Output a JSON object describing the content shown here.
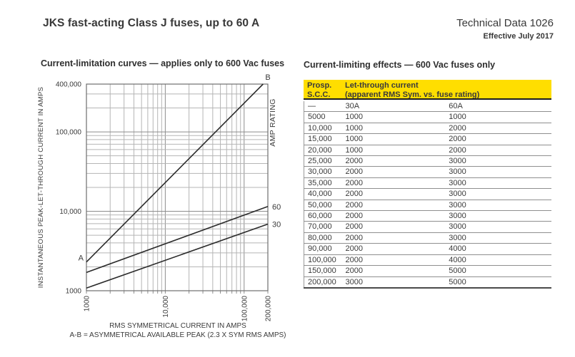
{
  "page": {
    "title": "JKS fast-acting Class J fuses, up to 60 A",
    "doc_ref": "Technical Data 1026",
    "effective": "Effective July 2017"
  },
  "chart_data": {
    "type": "line",
    "title": "Current-limitation curves — applies only to 600 Vac fuses",
    "xlabel": "RMS SYMMETRICAL CURRENT IN AMPS",
    "ylabel": "INSTANTANEOUS PEAK-LET-THROUGH CURRENT IN AMPS",
    "right_label": "AMP RATING",
    "footnote": "A-B = ASYMMETRICAL AVAILABLE PEAK (2.3 X SYM RMS AMPS)",
    "x_scale": "log",
    "y_scale": "log",
    "xlim": [
      1000,
      200000
    ],
    "ylim": [
      1000,
      400000
    ],
    "grid": "log minor gridlines on both axes",
    "x_ticks": [
      {
        "value": 1000,
        "label": "1000"
      },
      {
        "value": 10000,
        "label": "10,000"
      },
      {
        "value": 100000,
        "label": "100,000"
      },
      {
        "value": 200000,
        "label": "200,000"
      }
    ],
    "y_ticks": [
      {
        "value": 1000,
        "label": "1000"
      },
      {
        "value": 10000,
        "label": "10,000"
      },
      {
        "value": 100000,
        "label": "100,000"
      },
      {
        "value": 400000,
        "label": "400,000"
      }
    ],
    "series": [
      {
        "name": "asymmetrical-available-peak",
        "start_label": "A",
        "end_label": "B",
        "points": [
          [
            1000,
            2300
          ],
          [
            174000,
            400000
          ]
        ]
      },
      {
        "name": "60A-fuse",
        "end_label": "60",
        "points": [
          [
            1000,
            1700
          ],
          [
            200000,
            11500
          ]
        ]
      },
      {
        "name": "30A-fuse",
        "end_label": "30",
        "points": [
          [
            1000,
            1080
          ],
          [
            200000,
            6900
          ]
        ]
      }
    ]
  },
  "table": {
    "title": "Current-limiting effects — 600 Vac fuses only",
    "header": {
      "col1_line1": "Prosp.",
      "col1_line2": "S.C.C.",
      "col2_line1": "Let-through current",
      "col2_line2": "(apparent RMS Sym. vs. fuse rating)"
    },
    "rows": [
      [
        "—",
        "30A",
        "60A"
      ],
      [
        "5000",
        "1000",
        "1000"
      ],
      [
        "10,000",
        "1000",
        "2000"
      ],
      [
        "15,000",
        "1000",
        "2000"
      ],
      [
        "20,000",
        "1000",
        "2000"
      ],
      [
        "25,000",
        "2000",
        "3000"
      ],
      [
        "30,000",
        "2000",
        "3000"
      ],
      [
        "35,000",
        "2000",
        "3000"
      ],
      [
        "40,000",
        "2000",
        "3000"
      ],
      [
        "50,000",
        "2000",
        "3000"
      ],
      [
        "60,000",
        "2000",
        "3000"
      ],
      [
        "70,000",
        "2000",
        "3000"
      ],
      [
        "80,000",
        "2000",
        "3000"
      ],
      [
        "90,000",
        "2000",
        "4000"
      ],
      [
        "100,000",
        "2000",
        "4000"
      ],
      [
        "150,000",
        "2000",
        "5000"
      ],
      [
        "200,000",
        "3000",
        "5000"
      ]
    ]
  },
  "colors": {
    "accent_yellow": "#ffde00",
    "text": "#3a3a3a",
    "grid_minor": "#b5b5b5",
    "grid_major": "#8c8c8c",
    "plot_border": "#6e6e6e",
    "curve": "#2b2b2b"
  }
}
